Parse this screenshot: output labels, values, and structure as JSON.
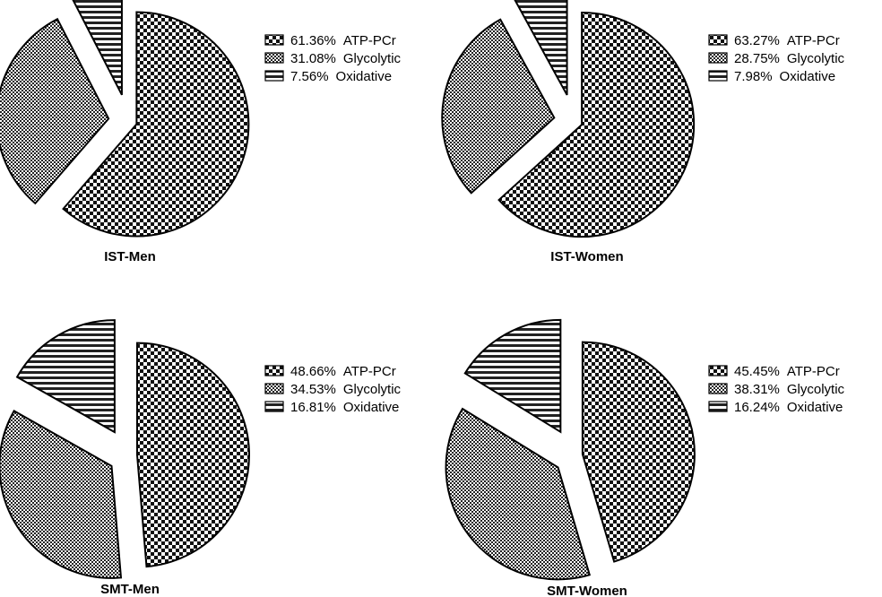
{
  "chart_data": [
    {
      "type": "pie",
      "title": "IST-Men",
      "slices": [
        {
          "label": "ATP-PCr",
          "value": 61.36,
          "value_label": "61.36%",
          "pattern": "checker-large"
        },
        {
          "label": "Glycolytic",
          "value": 31.08,
          "value_label": "31.08%",
          "pattern": "checker-small"
        },
        {
          "label": "Oxidative",
          "value": 7.56,
          "value_label": "7.56%",
          "pattern": "horizontal-stripes"
        }
      ],
      "legend_position": "top-right"
    },
    {
      "type": "pie",
      "title": "IST-Women",
      "slices": [
        {
          "label": "ATP-PCr",
          "value": 63.27,
          "value_label": "63.27%",
          "pattern": "checker-large"
        },
        {
          "label": "Glycolytic",
          "value": 28.75,
          "value_label": "28.75%",
          "pattern": "checker-small"
        },
        {
          "label": "Oxidative",
          "value": 7.98,
          "value_label": "7.98%",
          "pattern": "horizontal-stripes"
        }
      ],
      "legend_position": "top-right"
    },
    {
      "type": "pie",
      "title": "SMT-Men",
      "slices": [
        {
          "label": "ATP-PCr",
          "value": 48.66,
          "value_label": "48.66%",
          "pattern": "checker-large"
        },
        {
          "label": "Glycolytic",
          "value": 34.53,
          "value_label": "34.53%",
          "pattern": "checker-small"
        },
        {
          "label": "Oxidative",
          "value": 16.81,
          "value_label": "16.81%",
          "pattern": "horizontal-stripes"
        }
      ],
      "legend_position": "top-right"
    },
    {
      "type": "pie",
      "title": "SMT-Women",
      "slices": [
        {
          "label": "ATP-PCr",
          "value": 45.45,
          "value_label": "45.45%",
          "pattern": "checker-large"
        },
        {
          "label": "Glycolytic",
          "value": 38.31,
          "value_label": "38.31%",
          "pattern": "checker-small"
        },
        {
          "label": "Oxidative",
          "value": 16.24,
          "value_label": "16.24%",
          "pattern": "horizontal-stripes"
        }
      ],
      "legend_position": "top-right"
    }
  ],
  "colors": {
    "ink": "#000000",
    "background": "#ffffff"
  }
}
